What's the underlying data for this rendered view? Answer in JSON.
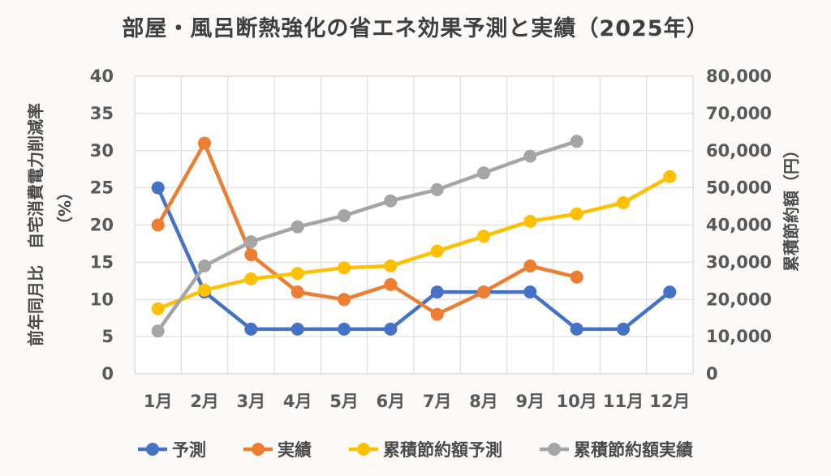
{
  "title": "部屋・風呂断熱強化の省エネ効果予測と実績（2025年）",
  "left_axis": {
    "title_main": "前年同月比　自宅消費電力削減率",
    "title_unit": "（%）",
    "ticks": [
      "40",
      "35",
      "30",
      "25",
      "20",
      "15",
      "10",
      "5",
      "0"
    ],
    "min": 0,
    "max": 40,
    "step": 5
  },
  "right_axis": {
    "title": "累積節約額（円）",
    "ticks": [
      "80,000",
      "70,000",
      "60,000",
      "50,000",
      "40,000",
      "30,000",
      "20,000",
      "10,000",
      "0"
    ],
    "min": 0,
    "max": 80000,
    "step": 10000
  },
  "chart_data": {
    "type": "line",
    "title": "部屋・風呂断熱強化の省エネ効果予測と実績（2025年）",
    "categories": [
      "1月",
      "2月",
      "3月",
      "4月",
      "5月",
      "6月",
      "7月",
      "8月",
      "9月",
      "10月",
      "11月",
      "12月"
    ],
    "series": [
      {
        "name": "予測",
        "key": "forecast",
        "axis": "left",
        "color": "#4472C4",
        "values": [
          25,
          11,
          6,
          6,
          6,
          6,
          11,
          11,
          11,
          6,
          6,
          11
        ]
      },
      {
        "name": "実績",
        "key": "actual",
        "axis": "left",
        "color": "#ED7D31",
        "values": [
          20,
          31,
          16,
          11,
          10,
          12,
          8,
          11,
          14.5,
          13,
          null,
          null
        ]
      },
      {
        "name": "累積節約額予測",
        "key": "cumulative-savings-forecast",
        "axis": "right",
        "color": "#FFC000",
        "values": [
          17500,
          22500,
          25500,
          27000,
          28500,
          29000,
          33000,
          37000,
          41000,
          43000,
          46000,
          53000
        ]
      },
      {
        "name": "累積節約額実績",
        "key": "cumulative-savings-actual",
        "axis": "right",
        "color": "#A5A5A5",
        "values": [
          11500,
          29000,
          35500,
          39500,
          42500,
          46500,
          49500,
          54000,
          58500,
          62500,
          null,
          null
        ]
      }
    ],
    "left_ylim": [
      0,
      40
    ],
    "right_ylim": [
      0,
      80000
    ],
    "grid": true,
    "legend_position": "bottom",
    "colors": {
      "grid": "#D9D9D9",
      "plot_border": "#D0CECE",
      "plot_bg": "#FFFFFF"
    }
  }
}
